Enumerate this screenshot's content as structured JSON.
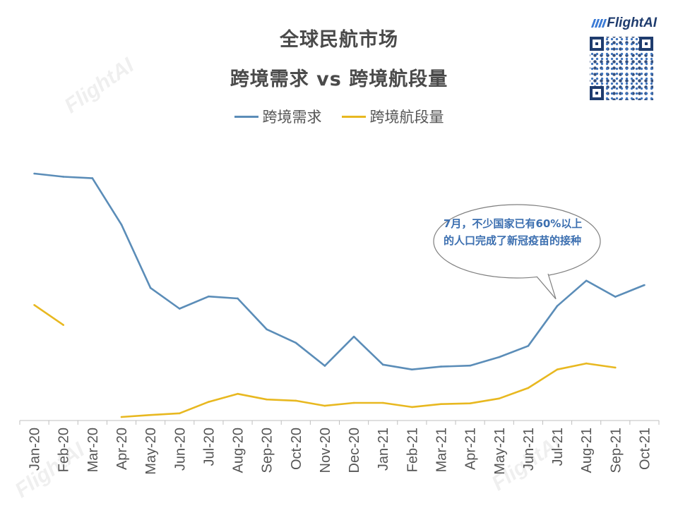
{
  "header": {
    "title_line1": "全球民航市场",
    "title_line2": "跨境需求 vs 跨境航段量"
  },
  "brand": {
    "logo": "FlightAI",
    "watermark": "FlightAI"
  },
  "annotation": {
    "text": "7月，不少国家已有60%以上的人口完成了新冠疫苗的接种"
  },
  "colors": {
    "demand": "#5b8db8",
    "sectors": "#e8b820",
    "axis": "#bfbfbf",
    "tick_text": "#555555",
    "title": "#4a4a4a",
    "annotation": "#3c6fb0"
  },
  "chart_data": {
    "type": "line",
    "categories": [
      "Jan-20",
      "Feb-20",
      "Mar-20",
      "Apr-20",
      "May-20",
      "Jun-20",
      "Jul-20",
      "Aug-20",
      "Sep-20",
      "Oct-20",
      "Nov-20",
      "Dec-20",
      "Jan-21",
      "Feb-21",
      "Mar-21",
      "Apr-21",
      "May-21",
      "Jun-21",
      "Jul-21",
      "Aug-21",
      "Sep-21",
      "Oct-21"
    ],
    "series": [
      {
        "name": "跨境需求",
        "color": "#5b8db8",
        "values": [
          100,
          98.7,
          98.1,
          79,
          53,
          44.5,
          49.5,
          48.7,
          36,
          30.5,
          21,
          33,
          21.5,
          19.5,
          20.7,
          21.1,
          24.6,
          29.2,
          45.6,
          56,
          49.4,
          54.2
        ]
      },
      {
        "name": "跨境航段量",
        "color": "#e8b820",
        "values": [
          46,
          37.8,
          null,
          0,
          0.8,
          1.5,
          6.2,
          9.5,
          7.2,
          6.7,
          4.6,
          5.8,
          5.8,
          4.1,
          5.3,
          5.6,
          7.6,
          11.9,
          19.5,
          22,
          20.3,
          null
        ]
      }
    ],
    "title": "全球民航市场 跨境需求 vs 跨境航段量",
    "xlabel": "",
    "ylabel": "",
    "ylim": [
      0,
      100
    ],
    "grid": false,
    "legend": "top-center"
  }
}
